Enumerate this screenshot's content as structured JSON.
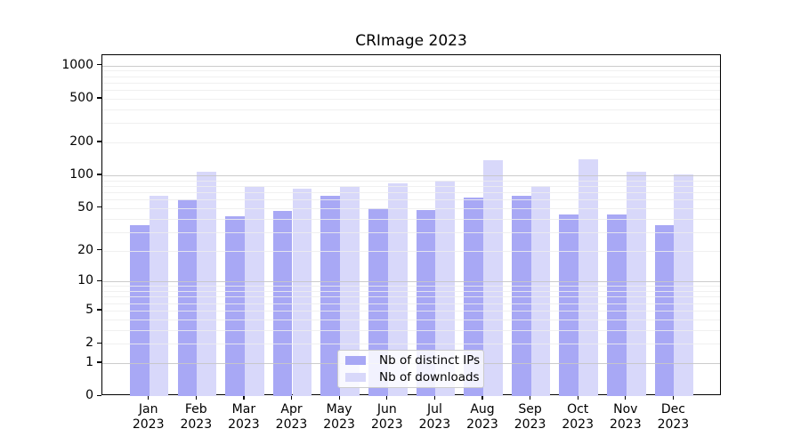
{
  "chart_data": {
    "type": "bar",
    "title": "CRImage 2023",
    "categories": [
      "Jan 2023",
      "Feb 2023",
      "Mar 2023",
      "Apr 2023",
      "May 2023",
      "Jun 2023",
      "Jul 2023",
      "Aug 2023",
      "Sep 2023",
      "Oct 2023",
      "Nov 2023",
      "Dec 2023"
    ],
    "months": [
      "Jan",
      "Feb",
      "Mar",
      "Apr",
      "May",
      "Jun",
      "Jul",
      "Aug",
      "Sep",
      "Oct",
      "Nov",
      "Dec"
    ],
    "year_label": "2023",
    "series": [
      {
        "name": "Nb of distinct IPs",
        "color": "#a8a8f5",
        "values": [
          35,
          60,
          42,
          47,
          65,
          50,
          48,
          62,
          65,
          44,
          44,
          35
        ]
      },
      {
        "name": "Nb of downloads",
        "color": "#d8d8fa",
        "values": [
          65,
          107,
          78,
          76,
          79,
          84,
          90,
          138,
          80,
          140,
          108,
          102
        ]
      }
    ],
    "y_scale": "log10(1+v)",
    "y_ticks": [
      0,
      1,
      2,
      5,
      10,
      20,
      50,
      100,
      200,
      500,
      1000
    ],
    "ylim": [
      0,
      1250
    ],
    "grid": {
      "on": true,
      "major_color": "#c6c6c6",
      "minor_color": "#ededed"
    },
    "legend": {
      "position": "lower center",
      "items": [
        "Nb of distinct IPs",
        "Nb of downloads"
      ]
    },
    "axis_color": "#000000"
  }
}
